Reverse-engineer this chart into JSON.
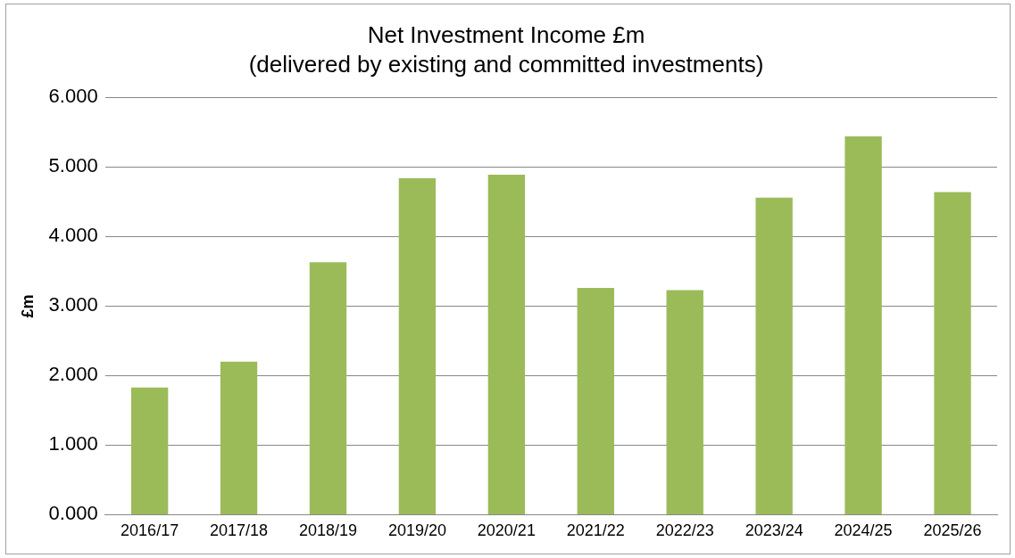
{
  "chart_data": {
    "type": "bar",
    "title": "Net Investment Income £m",
    "subtitle": "(delivered by existing and committed investments)",
    "ylabel": "£m",
    "categories": [
      "2016/17",
      "2017/18",
      "2018/19",
      "2019/20",
      "2020/21",
      "2021/22",
      "2022/23",
      "2023/24",
      "2024/25",
      "2025/26"
    ],
    "values": [
      1.83,
      2.2,
      3.63,
      4.84,
      4.89,
      3.26,
      3.23,
      4.56,
      5.44,
      4.64
    ],
    "color": "#9bbb59",
    "ylim": [
      0,
      6
    ],
    "yticks": [
      {
        "value": 0,
        "label": "0.000"
      },
      {
        "value": 1,
        "label": "1.000"
      },
      {
        "value": 2,
        "label": "2.000"
      },
      {
        "value": 3,
        "label": "3.000"
      },
      {
        "value": 4,
        "label": "4.000"
      },
      {
        "value": 5,
        "label": "5.000"
      },
      {
        "value": 6,
        "label": "6.000"
      }
    ],
    "grid": "y",
    "legend": false
  }
}
